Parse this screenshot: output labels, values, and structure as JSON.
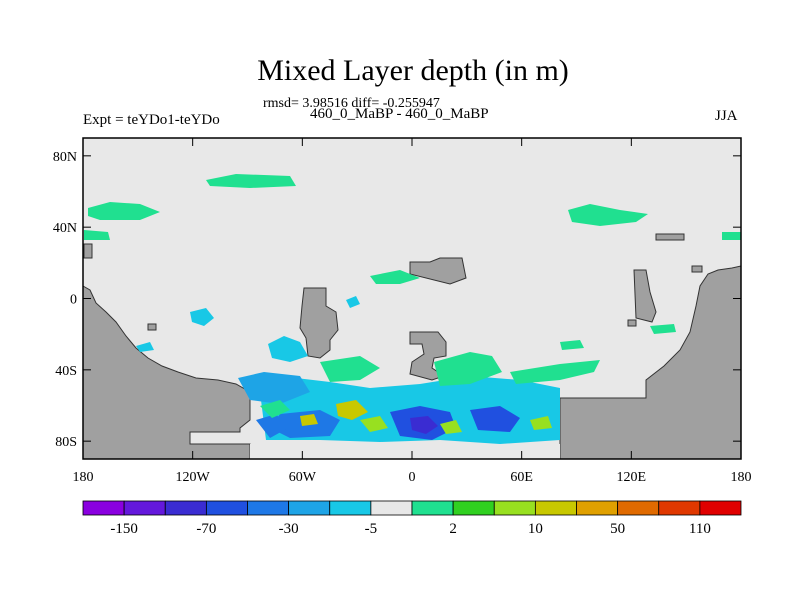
{
  "header": {
    "title": "Mixed Layer depth (in m)",
    "stats": "rmsd= 3.98516 diff= -0.255947",
    "case_label": "460_0_MaBP - 460_0_MaBP",
    "experiment": "Expt = teYDo1-teYDo",
    "season": "JJA"
  },
  "chart_data": {
    "type": "heatmap",
    "title": "Mixed Layer depth (in m)",
    "subtitle": "rmsd= 3.98516 diff= -0.255947",
    "x_axis": {
      "range": [
        -180,
        180
      ],
      "ticks": [
        -180,
        -120,
        -60,
        0,
        60,
        120,
        180
      ],
      "tick_labels": [
        "180",
        "120W",
        "60W",
        "0",
        "60E",
        "120E",
        "180"
      ]
    },
    "y_axis": {
      "range": [
        -90,
        90
      ],
      "ticks": [
        80,
        40,
        0,
        -40,
        -80
      ],
      "tick_labels": [
        "80N",
        "40N",
        "0",
        "40S",
        "80S"
      ]
    },
    "colorbar": {
      "colors": [
        "#8a00e0",
        "#6418dc",
        "#3a2cd2",
        "#2050e0",
        "#1e78e6",
        "#1ea4e6",
        "#18c8e6",
        "#e8e8e8",
        "#20e090",
        "#30d020",
        "#98e020",
        "#c8c800",
        "#e0a000",
        "#e06a00",
        "#e03800",
        "#e00000"
      ],
      "labels": [
        "-150",
        "-70",
        "-30",
        "-5",
        "2",
        "10",
        "50",
        "110"
      ]
    },
    "land_color": "#a0a0a0",
    "ocean_background": "#e8e8e8",
    "grid": false
  }
}
